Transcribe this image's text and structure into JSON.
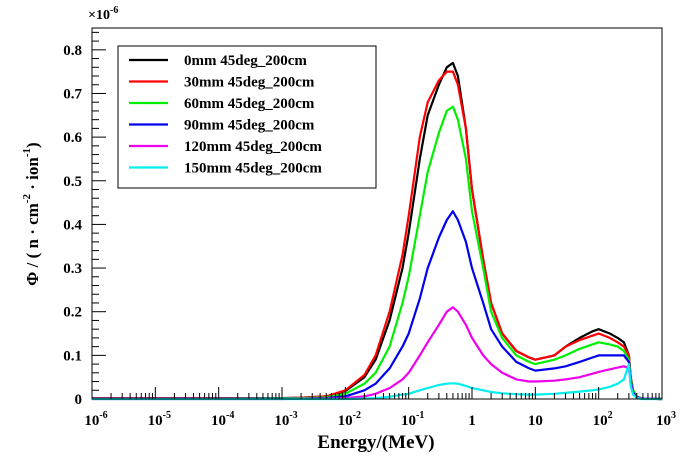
{
  "chart_data": {
    "type": "line",
    "title": "",
    "xlabel": "Energy/(MeV)",
    "ylabel_parts": [
      "Φ / ( n  · cm",
      "-2",
      "  · ion",
      "-1",
      ")"
    ],
    "y_multiplier_base": "×10",
    "y_multiplier_exp": "-6",
    "x_scale": "log",
    "xlim": [
      1e-06,
      1000
    ],
    "ylim": [
      0,
      0.85
    ],
    "x_tick_values": [
      1e-06,
      1e-05,
      0.0001,
      0.001,
      0.01,
      0.1,
      1,
      10,
      100,
      1000
    ],
    "x_ticks": [
      {
        "base": "10",
        "exp": "-6"
      },
      {
        "base": "10",
        "exp": "-5"
      },
      {
        "base": "10",
        "exp": "-4"
      },
      {
        "base": "10",
        "exp": "-3"
      },
      {
        "base": "10",
        "exp": "-2"
      },
      {
        "base": "10",
        "exp": "-1"
      },
      {
        "base": "1",
        "exp": ""
      },
      {
        "base": "10",
        "exp": ""
      },
      {
        "base": "10",
        "exp": "2"
      },
      {
        "base": "10",
        "exp": "3"
      }
    ],
    "y_tick_values": [
      0,
      0.1,
      0.2,
      0.3,
      0.4,
      0.5,
      0.6,
      0.7,
      0.8
    ],
    "y_ticks": [
      "0",
      "0.1",
      "0.2",
      "0.3",
      "0.4",
      "0.5",
      "0.6",
      "0.7",
      "0.8"
    ],
    "grid": false,
    "legend_position": "top-left",
    "series": [
      {
        "name": "0mm 45deg_200cm",
        "color": "#000000",
        "x": [
          1e-06,
          1e-05,
          0.0001,
          0.001,
          0.002,
          0.005,
          0.01,
          0.02,
          0.03,
          0.05,
          0.08,
          0.1,
          0.15,
          0.2,
          0.3,
          0.4,
          0.5,
          0.6,
          0.8,
          1,
          1.5,
          2,
          3,
          5,
          8,
          10,
          20,
          30,
          50,
          80,
          100,
          150,
          200,
          250,
          300,
          320,
          350,
          400,
          500,
          1000
        ],
        "y": [
          0.002,
          0.002,
          0.002,
          0.002,
          0.003,
          0.006,
          0.018,
          0.05,
          0.09,
          0.18,
          0.3,
          0.38,
          0.55,
          0.65,
          0.72,
          0.76,
          0.77,
          0.74,
          0.62,
          0.48,
          0.32,
          0.22,
          0.15,
          0.11,
          0.095,
          0.09,
          0.1,
          0.12,
          0.14,
          0.155,
          0.16,
          0.15,
          0.14,
          0.13,
          0.1,
          0.05,
          0.02,
          0.005,
          0.001,
          0
        ]
      },
      {
        "name": "30mm 45deg_200cm",
        "color": "#ff0000",
        "x": [
          1e-06,
          1e-05,
          0.0001,
          0.001,
          0.002,
          0.005,
          0.01,
          0.02,
          0.03,
          0.05,
          0.08,
          0.1,
          0.15,
          0.2,
          0.3,
          0.4,
          0.5,
          0.6,
          0.8,
          1,
          1.5,
          2,
          3,
          5,
          8,
          10,
          20,
          30,
          50,
          80,
          100,
          150,
          200,
          250,
          300,
          320,
          350,
          400,
          500,
          1000
        ],
        "y": [
          0.002,
          0.002,
          0.002,
          0.002,
          0.003,
          0.006,
          0.02,
          0.055,
          0.1,
          0.2,
          0.33,
          0.42,
          0.6,
          0.68,
          0.73,
          0.75,
          0.75,
          0.72,
          0.62,
          0.48,
          0.32,
          0.22,
          0.15,
          0.11,
          0.095,
          0.09,
          0.1,
          0.12,
          0.135,
          0.145,
          0.15,
          0.14,
          0.13,
          0.12,
          0.1,
          0.05,
          0.02,
          0.005,
          0.001,
          0
        ]
      },
      {
        "name": "60mm 45deg_200cm",
        "color": "#00ee00",
        "x": [
          1e-06,
          1e-05,
          0.0001,
          0.001,
          0.002,
          0.005,
          0.01,
          0.02,
          0.03,
          0.05,
          0.08,
          0.1,
          0.15,
          0.2,
          0.3,
          0.4,
          0.5,
          0.6,
          0.8,
          1,
          1.5,
          2,
          3,
          5,
          8,
          10,
          20,
          30,
          50,
          80,
          100,
          150,
          200,
          250,
          300,
          320,
          350,
          400,
          500,
          1000
        ],
        "y": [
          0.001,
          0.001,
          0.001,
          0.002,
          0.002,
          0.004,
          0.012,
          0.035,
          0.06,
          0.12,
          0.22,
          0.28,
          0.42,
          0.52,
          0.61,
          0.66,
          0.67,
          0.64,
          0.55,
          0.43,
          0.3,
          0.2,
          0.14,
          0.1,
          0.085,
          0.08,
          0.09,
          0.1,
          0.115,
          0.125,
          0.13,
          0.125,
          0.12,
          0.11,
          0.09,
          0.045,
          0.02,
          0.005,
          0.001,
          0
        ]
      },
      {
        "name": "90mm 45deg_200cm",
        "color": "#0000ee",
        "x": [
          1e-06,
          1e-05,
          0.0001,
          0.001,
          0.002,
          0.005,
          0.01,
          0.02,
          0.03,
          0.05,
          0.08,
          0.1,
          0.15,
          0.2,
          0.3,
          0.4,
          0.5,
          0.6,
          0.8,
          1,
          1.5,
          2,
          3,
          5,
          8,
          10,
          20,
          30,
          50,
          80,
          100,
          150,
          200,
          250,
          300,
          320,
          350,
          400,
          500,
          1000
        ],
        "y": [
          0.001,
          0.001,
          0.001,
          0.001,
          0.001,
          0.002,
          0.006,
          0.02,
          0.035,
          0.07,
          0.12,
          0.15,
          0.23,
          0.3,
          0.37,
          0.41,
          0.43,
          0.41,
          0.36,
          0.3,
          0.22,
          0.16,
          0.12,
          0.085,
          0.07,
          0.065,
          0.07,
          0.075,
          0.085,
          0.095,
          0.1,
          0.1,
          0.1,
          0.1,
          0.085,
          0.04,
          0.015,
          0.004,
          0.001,
          0
        ]
      },
      {
        "name": "120mm 45deg_200cm",
        "color": "#ee00ee",
        "x": [
          1e-06,
          1e-05,
          0.0001,
          0.001,
          0.002,
          0.005,
          0.01,
          0.02,
          0.03,
          0.05,
          0.08,
          0.1,
          0.15,
          0.2,
          0.3,
          0.4,
          0.5,
          0.6,
          0.8,
          1,
          1.5,
          2,
          3,
          5,
          8,
          10,
          20,
          30,
          50,
          80,
          100,
          150,
          200,
          250,
          300,
          320,
          350,
          400,
          500,
          1000
        ],
        "y": [
          0,
          0,
          0,
          0,
          0.001,
          0.001,
          0.002,
          0.006,
          0.012,
          0.025,
          0.045,
          0.06,
          0.1,
          0.13,
          0.17,
          0.2,
          0.21,
          0.2,
          0.17,
          0.14,
          0.1,
          0.08,
          0.06,
          0.045,
          0.04,
          0.04,
          0.042,
          0.045,
          0.05,
          0.058,
          0.062,
          0.068,
          0.072,
          0.075,
          0.07,
          0.035,
          0.012,
          0.003,
          0.001,
          0
        ]
      },
      {
        "name": "150mm 45deg_200cm",
        "color": "#00eeee",
        "x": [
          1e-06,
          1e-05,
          0.0001,
          0.001,
          0.002,
          0.005,
          0.01,
          0.02,
          0.03,
          0.05,
          0.08,
          0.1,
          0.15,
          0.2,
          0.3,
          0.4,
          0.5,
          0.6,
          0.8,
          1,
          1.5,
          2,
          3,
          5,
          8,
          10,
          20,
          30,
          50,
          80,
          100,
          150,
          200,
          250,
          300,
          320,
          350,
          400,
          500,
          1000
        ],
        "y": [
          0,
          0,
          0,
          0,
          0,
          0,
          0,
          0.001,
          0.002,
          0.005,
          0.01,
          0.012,
          0.02,
          0.025,
          0.032,
          0.035,
          0.036,
          0.035,
          0.03,
          0.025,
          0.02,
          0.016,
          0.013,
          0.011,
          0.01,
          0.01,
          0.012,
          0.014,
          0.017,
          0.02,
          0.022,
          0.028,
          0.035,
          0.045,
          0.08,
          0.03,
          0.01,
          0.002,
          0,
          0
        ]
      }
    ]
  }
}
